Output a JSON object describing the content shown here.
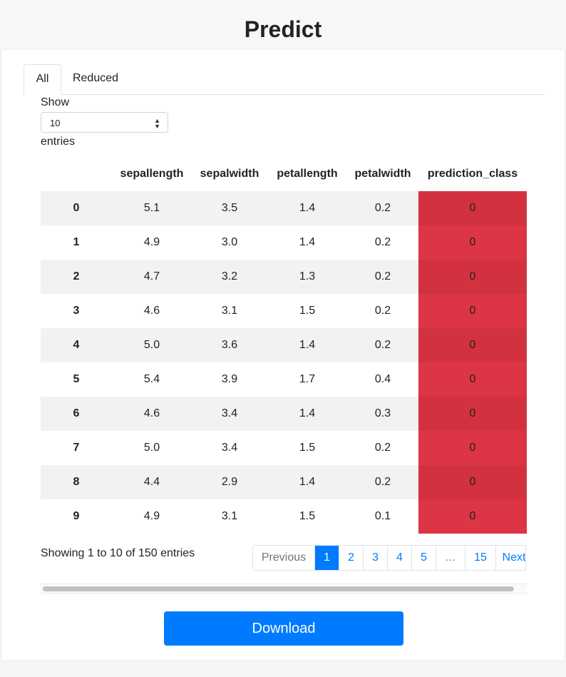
{
  "page": {
    "title": "Predict"
  },
  "tabs": [
    {
      "label": "All",
      "active": true
    },
    {
      "label": "Reduced",
      "active": false
    }
  ],
  "length_control": {
    "show_label": "Show",
    "selected": "10",
    "entries_label": "entries"
  },
  "table": {
    "columns": [
      "",
      "sepallength",
      "sepalwidth",
      "petallength",
      "petalwidth",
      "prediction_class"
    ],
    "rows": [
      {
        "index": "0",
        "sepallength": "5.1",
        "sepalwidth": "3.5",
        "petallength": "1.4",
        "petalwidth": "0.2",
        "prediction_class": "0"
      },
      {
        "index": "1",
        "sepallength": "4.9",
        "sepalwidth": "3.0",
        "petallength": "1.4",
        "petalwidth": "0.2",
        "prediction_class": "0"
      },
      {
        "index": "2",
        "sepallength": "4.7",
        "sepalwidth": "3.2",
        "petallength": "1.3",
        "petalwidth": "0.2",
        "prediction_class": "0"
      },
      {
        "index": "3",
        "sepallength": "4.6",
        "sepalwidth": "3.1",
        "petallength": "1.5",
        "petalwidth": "0.2",
        "prediction_class": "0"
      },
      {
        "index": "4",
        "sepallength": "5.0",
        "sepalwidth": "3.6",
        "petallength": "1.4",
        "petalwidth": "0.2",
        "prediction_class": "0"
      },
      {
        "index": "5",
        "sepallength": "5.4",
        "sepalwidth": "3.9",
        "petallength": "1.7",
        "petalwidth": "0.4",
        "prediction_class": "0"
      },
      {
        "index": "6",
        "sepallength": "4.6",
        "sepalwidth": "3.4",
        "petallength": "1.4",
        "petalwidth": "0.3",
        "prediction_class": "0"
      },
      {
        "index": "7",
        "sepallength": "5.0",
        "sepalwidth": "3.4",
        "petallength": "1.5",
        "petalwidth": "0.2",
        "prediction_class": "0"
      },
      {
        "index": "8",
        "sepallength": "4.4",
        "sepalwidth": "2.9",
        "petallength": "1.4",
        "petalwidth": "0.2",
        "prediction_class": "0"
      },
      {
        "index": "9",
        "sepallength": "4.9",
        "sepalwidth": "3.1",
        "petallength": "1.5",
        "petalwidth": "0.1",
        "prediction_class": "0"
      }
    ],
    "highlight_colors": {
      "odd": "#d2323f",
      "even": "#dc3545"
    }
  },
  "info_text": "Showing 1 to 10 of 150 entries",
  "pagination": {
    "previous": "Previous",
    "pages": [
      "1",
      "2",
      "3",
      "4",
      "5",
      "…",
      "15"
    ],
    "active_page": "1",
    "next": "Next"
  },
  "download_label": "Download",
  "colors": {
    "accent": "#007bff"
  }
}
